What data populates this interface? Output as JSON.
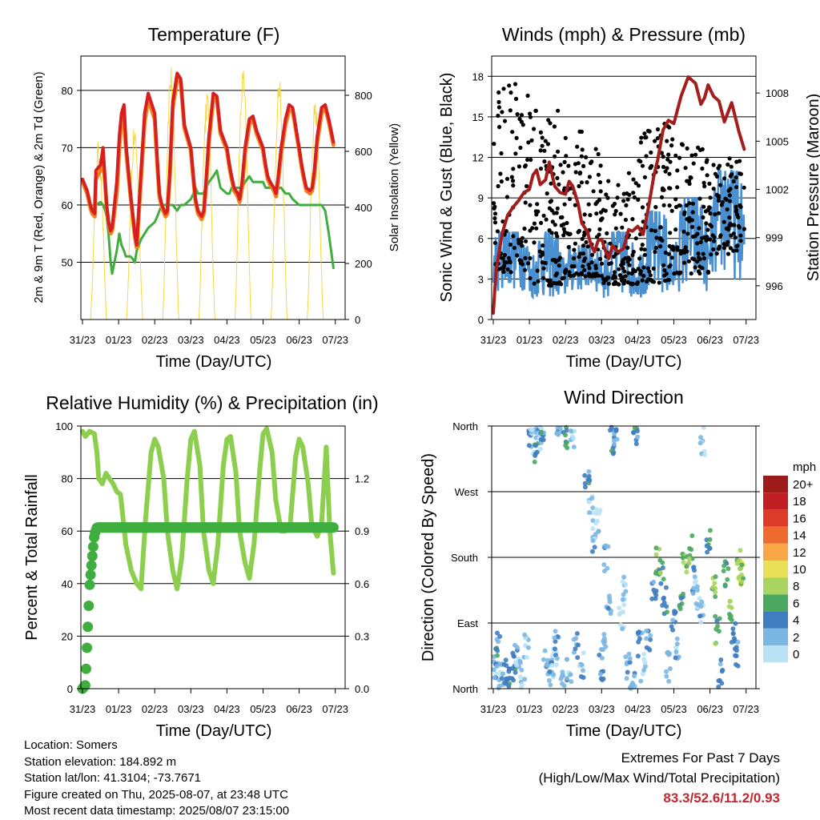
{
  "x_ticks": [
    "31/23",
    "01/23",
    "02/23",
    "03/23",
    "04/23",
    "05/23",
    "06/23",
    "07/23"
  ],
  "colors": {
    "temp_2m": "#d62020",
    "temp_9m": "#f08020",
    "dewpoint": "#3fae3f",
    "solar": "#f5d742",
    "wind": "#4a90d0",
    "gust": "#000000",
    "pressure": "#a31d1d",
    "rh": "#8ccf4f",
    "precip": "#3fae3f",
    "extremes": "#c1272d"
  },
  "chart_data": [
    {
      "type": "line",
      "title": "Temperature (F)",
      "xlabel": "Time (Day/UTC)",
      "ylabel": "2m & 9m T (Red, Orange) & 2m Td (Green)",
      "y2label": "Solar Insolation (Yellow)",
      "ylim": [
        40,
        86
      ],
      "yticks": [
        50,
        60,
        70,
        80
      ],
      "y2lim": [
        0,
        940
      ],
      "y2ticks": [
        0,
        200,
        400,
        600,
        800
      ],
      "x": [
        0,
        0.13,
        0.22,
        0.27,
        0.34,
        0.37,
        0.5,
        0.57,
        0.63,
        0.67,
        0.72,
        0.78,
        0.82,
        0.95,
        1.02,
        1.08,
        1.15,
        1.2,
        1.33,
        1.4,
        1.45,
        1.5,
        1.62,
        1.72,
        1.82,
        2.0,
        2.07,
        2.13,
        2.2,
        2.3,
        2.35,
        2.42,
        2.5,
        2.62,
        2.72,
        2.82,
        3.0,
        3.07,
        3.13,
        3.2,
        3.3,
        3.36,
        3.42,
        3.5,
        3.62,
        3.72,
        3.82,
        4.0,
        4.07,
        4.13,
        4.2,
        4.3,
        4.35,
        4.42,
        4.5,
        4.62,
        4.72,
        4.82,
        5.0,
        5.07,
        5.13,
        5.2,
        5.3,
        5.36,
        5.42,
        5.5,
        5.62,
        5.72,
        5.82,
        6.0,
        6.07,
        6.13,
        6.2,
        6.3,
        6.36,
        6.42,
        6.5,
        6.62,
        6.72,
        6.82,
        6.95
      ],
      "series": [
        {
          "name": "2m T",
          "values": [
            64.5,
            62.5,
            60,
            59,
            58.5,
            66,
            67,
            70,
            64,
            60,
            57,
            55.5,
            56,
            64,
            72,
            76,
            77.5,
            71,
            62,
            58,
            55,
            53,
            66,
            76,
            79.5,
            76,
            68,
            62,
            60,
            58.5,
            59,
            66,
            78,
            83,
            82,
            74,
            70,
            65,
            61,
            59,
            58,
            59,
            64,
            72,
            79.5,
            79,
            73,
            70,
            67,
            65,
            63,
            62,
            61,
            64,
            70,
            75,
            75.5,
            73,
            70,
            67,
            65,
            64,
            63,
            62,
            65,
            70,
            75,
            77.5,
            77,
            70,
            67,
            65,
            63,
            62.5,
            63,
            66,
            72,
            77,
            77.5,
            75,
            71
          ]
        },
        {
          "name": "9m T",
          "values": [
            64,
            62,
            59.5,
            58.5,
            58,
            64.5,
            66,
            68.5,
            63.5,
            59.5,
            57,
            55,
            55.5,
            62,
            70,
            74.5,
            76.5,
            70,
            61.5,
            57.5,
            54.5,
            52.6,
            64.5,
            74.5,
            78.5,
            75,
            67,
            61.5,
            59.5,
            58,
            58.5,
            65,
            77,
            82,
            81.5,
            73.5,
            69.5,
            64.5,
            60.5,
            58.5,
            57.5,
            58.5,
            63,
            71,
            78.5,
            78.5,
            72.5,
            69.5,
            66.5,
            64.5,
            62.5,
            61.5,
            60.5,
            63,
            69,
            74,
            75,
            72.5,
            69.5,
            66.5,
            64.5,
            63.5,
            62.5,
            61.5,
            64,
            69,
            74,
            76.5,
            76.5,
            69.5,
            66.5,
            64.5,
            62.5,
            62,
            62.5,
            65,
            71,
            76,
            77,
            74.5,
            70.5
          ]
        },
        {
          "name": "2m Td",
          "values": [
            64,
            62,
            59,
            58.5,
            58,
            60,
            60.5,
            60,
            59,
            58,
            55,
            50,
            48,
            52,
            55,
            53,
            52,
            51,
            51,
            50.5,
            50,
            52,
            54,
            55,
            56,
            57,
            58,
            59,
            60,
            60,
            60,
            60,
            60,
            59,
            60,
            60,
            61,
            62,
            63,
            62,
            62,
            62,
            63,
            64,
            65,
            66,
            63,
            62,
            62,
            63,
            63,
            63,
            63,
            63,
            64,
            65,
            64,
            64,
            64,
            63,
            63,
            63,
            63,
            63,
            63,
            63,
            62,
            62,
            61,
            60,
            60,
            60,
            60,
            60,
            60,
            60,
            60,
            60,
            59,
            55,
            49
          ]
        }
      ],
      "solar_days": [
        0,
        1,
        2,
        3,
        4,
        5,
        6
      ],
      "solar_peaks": [
        640,
        700,
        920,
        830,
        910,
        890,
        800
      ]
    },
    {
      "type": "scatter",
      "title": "Winds (mph) & Pressure (mb)",
      "xlabel": "Time (Day/UTC)",
      "ylabel": "Sonic Wind & Gust (Blue, Black)",
      "y2label": "Station Pressure (Maroon)",
      "ylim": [
        0,
        19.5
      ],
      "yticks": [
        0,
        3,
        6,
        9,
        12,
        15,
        18
      ],
      "y2lim": [
        993.9,
        1010.3
      ],
      "y2ticks": [
        996,
        999,
        1002,
        1005,
        1008
      ],
      "pressure_x": [
        0,
        0.08,
        0.25,
        0.4,
        0.55,
        0.7,
        0.85,
        1.0,
        1.1,
        1.2,
        1.3,
        1.45,
        1.55,
        1.7,
        1.85,
        2.0,
        2.1,
        2.2,
        2.35,
        2.45,
        2.6,
        2.7,
        2.8,
        2.9,
        3.0,
        3.1,
        3.2,
        3.3,
        3.45,
        3.6,
        3.75,
        3.85,
        4.0,
        4.15,
        4.3,
        4.45,
        4.55,
        4.7,
        4.85,
        5.0,
        5.2,
        5.4,
        5.6,
        5.75,
        5.85,
        5.95,
        6.1,
        6.25,
        6.4,
        6.6,
        6.8,
        6.95
      ],
      "pressure": [
        994.3,
        997,
        999.3,
        1000.4,
        1000.9,
        1001.3,
        1001.8,
        1002,
        1002.9,
        1003.2,
        1002.3,
        1002.6,
        1003.7,
        1002.2,
        1001.8,
        1001.7,
        1002.5,
        1002.2,
        1001.1,
        999.9,
        999.4,
        998.6,
        998.1,
        998.8,
        998.9,
        998.2,
        997.7,
        998.5,
        998.1,
        998.3,
        999.5,
        999.4,
        999.7,
        999.2,
        1000.9,
        1002.9,
        1003.8,
        1005.7,
        1006.3,
        1006.1,
        1007.8,
        1009,
        1008.6,
        1007.3,
        1007.7,
        1008.5,
        1007.8,
        1007.5,
        1006.2,
        1007.4,
        1005.6,
        1004.5
      ],
      "wind_daily_mean": [
        3.5,
        2.5,
        3.2,
        2.6,
        2.7,
        3.4,
        4.8
      ],
      "wind_daily_max": [
        6.5,
        6.5,
        5.5,
        6.5,
        8,
        9,
        11
      ],
      "gust_daily_max": [
        17.5,
        15.8,
        14,
        11,
        14.5,
        13,
        12
      ]
    },
    {
      "type": "line",
      "title": "Relative Humidity (%) & Precipitation (in)",
      "xlabel": "Time (Day/UTC)",
      "ylabel": "Percent & Total Rainfall",
      "ylim": [
        0,
        100
      ],
      "yticks": [
        0,
        20,
        40,
        60,
        80,
        100
      ],
      "y2lim": [
        0,
        1.5
      ],
      "y2ticks": [
        "0.0",
        "0.3",
        "0.6",
        "0.9",
        "1.2"
      ],
      "x": [
        0,
        0.08,
        0.2,
        0.33,
        0.4,
        0.45,
        0.55,
        0.65,
        0.75,
        0.85,
        0.95,
        1.05,
        1.2,
        1.35,
        1.5,
        1.62,
        1.75,
        1.9,
        2.0,
        2.1,
        2.25,
        2.35,
        2.5,
        2.62,
        2.75,
        2.9,
        3.0,
        3.1,
        3.25,
        3.35,
        3.5,
        3.62,
        3.75,
        3.9,
        4.0,
        4.1,
        4.25,
        4.35,
        4.5,
        4.62,
        4.75,
        4.9,
        5.0,
        5.1,
        5.25,
        5.35,
        5.5,
        5.62,
        5.75,
        5.9,
        6.0,
        6.1,
        6.25,
        6.35,
        6.5,
        6.62,
        6.75,
        6.85,
        6.95
      ],
      "series": [
        {
          "name": "RH",
          "values": [
            98,
            96,
            98,
            97,
            90,
            80,
            78,
            82,
            80,
            78,
            75,
            74,
            55,
            45,
            40,
            38,
            65,
            90,
            95,
            92,
            80,
            60,
            45,
            38,
            50,
            80,
            95,
            98,
            85,
            60,
            45,
            40,
            55,
            85,
            95,
            96,
            82,
            60,
            48,
            42,
            55,
            82,
            97,
            99,
            90,
            72,
            60,
            60,
            62,
            88,
            95,
            92,
            78,
            62,
            58,
            63,
            92,
            60,
            44
          ]
        },
        {
          "name": "Precip",
          "values": [
            0,
            0.02,
            0.6,
            0.88,
            0.92,
            0.92,
            0.92,
            0.92,
            0.92,
            0.92,
            0.92,
            0.92,
            0.92,
            0.92,
            0.92,
            0.92,
            0.92,
            0.92,
            0.92,
            0.92,
            0.92,
            0.92,
            0.92,
            0.92,
            0.92,
            0.92,
            0.92,
            0.92,
            0.92,
            0.92,
            0.92,
            0.92,
            0.92,
            0.92,
            0.92,
            0.92,
            0.92,
            0.92,
            0.92,
            0.92,
            0.92,
            0.92,
            0.92,
            0.92,
            0.92,
            0.92,
            0.92,
            0.92,
            0.92,
            0.92,
            0.92,
            0.92,
            0.92,
            0.92,
            0.92,
            0.92,
            0.92,
            0.92,
            0.92
          ]
        }
      ]
    },
    {
      "type": "scatter",
      "title": "Wind Direction",
      "xlabel": "Time (Day/UTC)",
      "ylabel": "Direction (Colored By Speed)",
      "yticks": [
        "North",
        "East",
        "South",
        "West",
        "North"
      ],
      "ylim": [
        0,
        360
      ],
      "legend_title": "mph",
      "legend_labels": [
        "20+",
        "18",
        "16",
        "14",
        "12",
        "10",
        "8",
        "6",
        "4",
        "2",
        "0"
      ],
      "legend_colors": [
        "#9e1b1b",
        "#c21f24",
        "#dd3a2a",
        "#ee6a2f",
        "#f8a646",
        "#e9df56",
        "#a9d45f",
        "#4aa860",
        "#3f7cc0",
        "#7cb7e2",
        "#b9e2f5"
      ],
      "direction_x": [
        0.02,
        0.08,
        0.13,
        0.21,
        0.3,
        0.42,
        0.55,
        0.65,
        0.8,
        0.92,
        1.05,
        1.1,
        1.2,
        1.25,
        1.3,
        1.38,
        1.45,
        1.6,
        1.68,
        1.75,
        1.82,
        1.9,
        2.0,
        2.1,
        2.2,
        2.3,
        2.45,
        2.6,
        2.7,
        2.8,
        2.9,
        3.0,
        3.05,
        3.12,
        3.2,
        3.3,
        3.4,
        3.55,
        3.6,
        3.72,
        3.85,
        3.95,
        4.05,
        4.15,
        4.3,
        4.45,
        4.55,
        4.65,
        4.75,
        4.85,
        5.0,
        5.1,
        5.2,
        5.3,
        5.45,
        5.55,
        5.65,
        5.75,
        5.8,
        5.95,
        6.1,
        6.2,
        6.3,
        6.45,
        6.55,
        6.65,
        6.72,
        6.8,
        6.85,
        6.9
      ],
      "direction": [
        40,
        20,
        60,
        15,
        25,
        10,
        30,
        45,
        20,
        60,
        350,
        340,
        330,
        355,
        345,
        350,
        40,
        20,
        35,
        60,
        355,
        15,
        345,
        25,
        340,
        60,
        30,
        280,
        250,
        200,
        230,
        30,
        60,
        180,
        120,
        340,
        355,
        100,
        140,
        30,
        10,
        350,
        60,
        30,
        60,
        130,
        175,
        160,
        120,
        30,
        90,
        60,
        110,
        170,
        190,
        150,
        130,
        100,
        340,
        200,
        140,
        80,
        20,
        160,
        100,
        70,
        50,
        170,
        160,
        150
      ],
      "speed": [
        1,
        3,
        4,
        2,
        3,
        4,
        5,
        2,
        1,
        1,
        3,
        1,
        5,
        2,
        1,
        4,
        2,
        3,
        1,
        4,
        3,
        1,
        5,
        2,
        1,
        3,
        2,
        4,
        1,
        2,
        0,
        3,
        1,
        2,
        3,
        5,
        2,
        0,
        1,
        3,
        2,
        4,
        3,
        1,
        3,
        4,
        7,
        6,
        4,
        2,
        3,
        2,
        5,
        7,
        6,
        3,
        1,
        2,
        1,
        5,
        7,
        6,
        3,
        5,
        7,
        4,
        3,
        8,
        9,
        7
      ]
    }
  ],
  "info": {
    "location": "Location: Somers",
    "elevation": "Station elevation: 184.892 m",
    "latlon": "Station lat/lon: 41.3104; -73.7671",
    "created": "Figure created on Thu, 2025-08-07, at 23:48 UTC",
    "timestamp": "Most recent data timestamp: 2025/08/07 23:15:00"
  },
  "extremes": {
    "title": "Extremes For Past 7 Days",
    "subtitle": "(High/Low/Max Wind/Total Precipitation)",
    "values": "83.3/52.6/11.2/0.93"
  }
}
